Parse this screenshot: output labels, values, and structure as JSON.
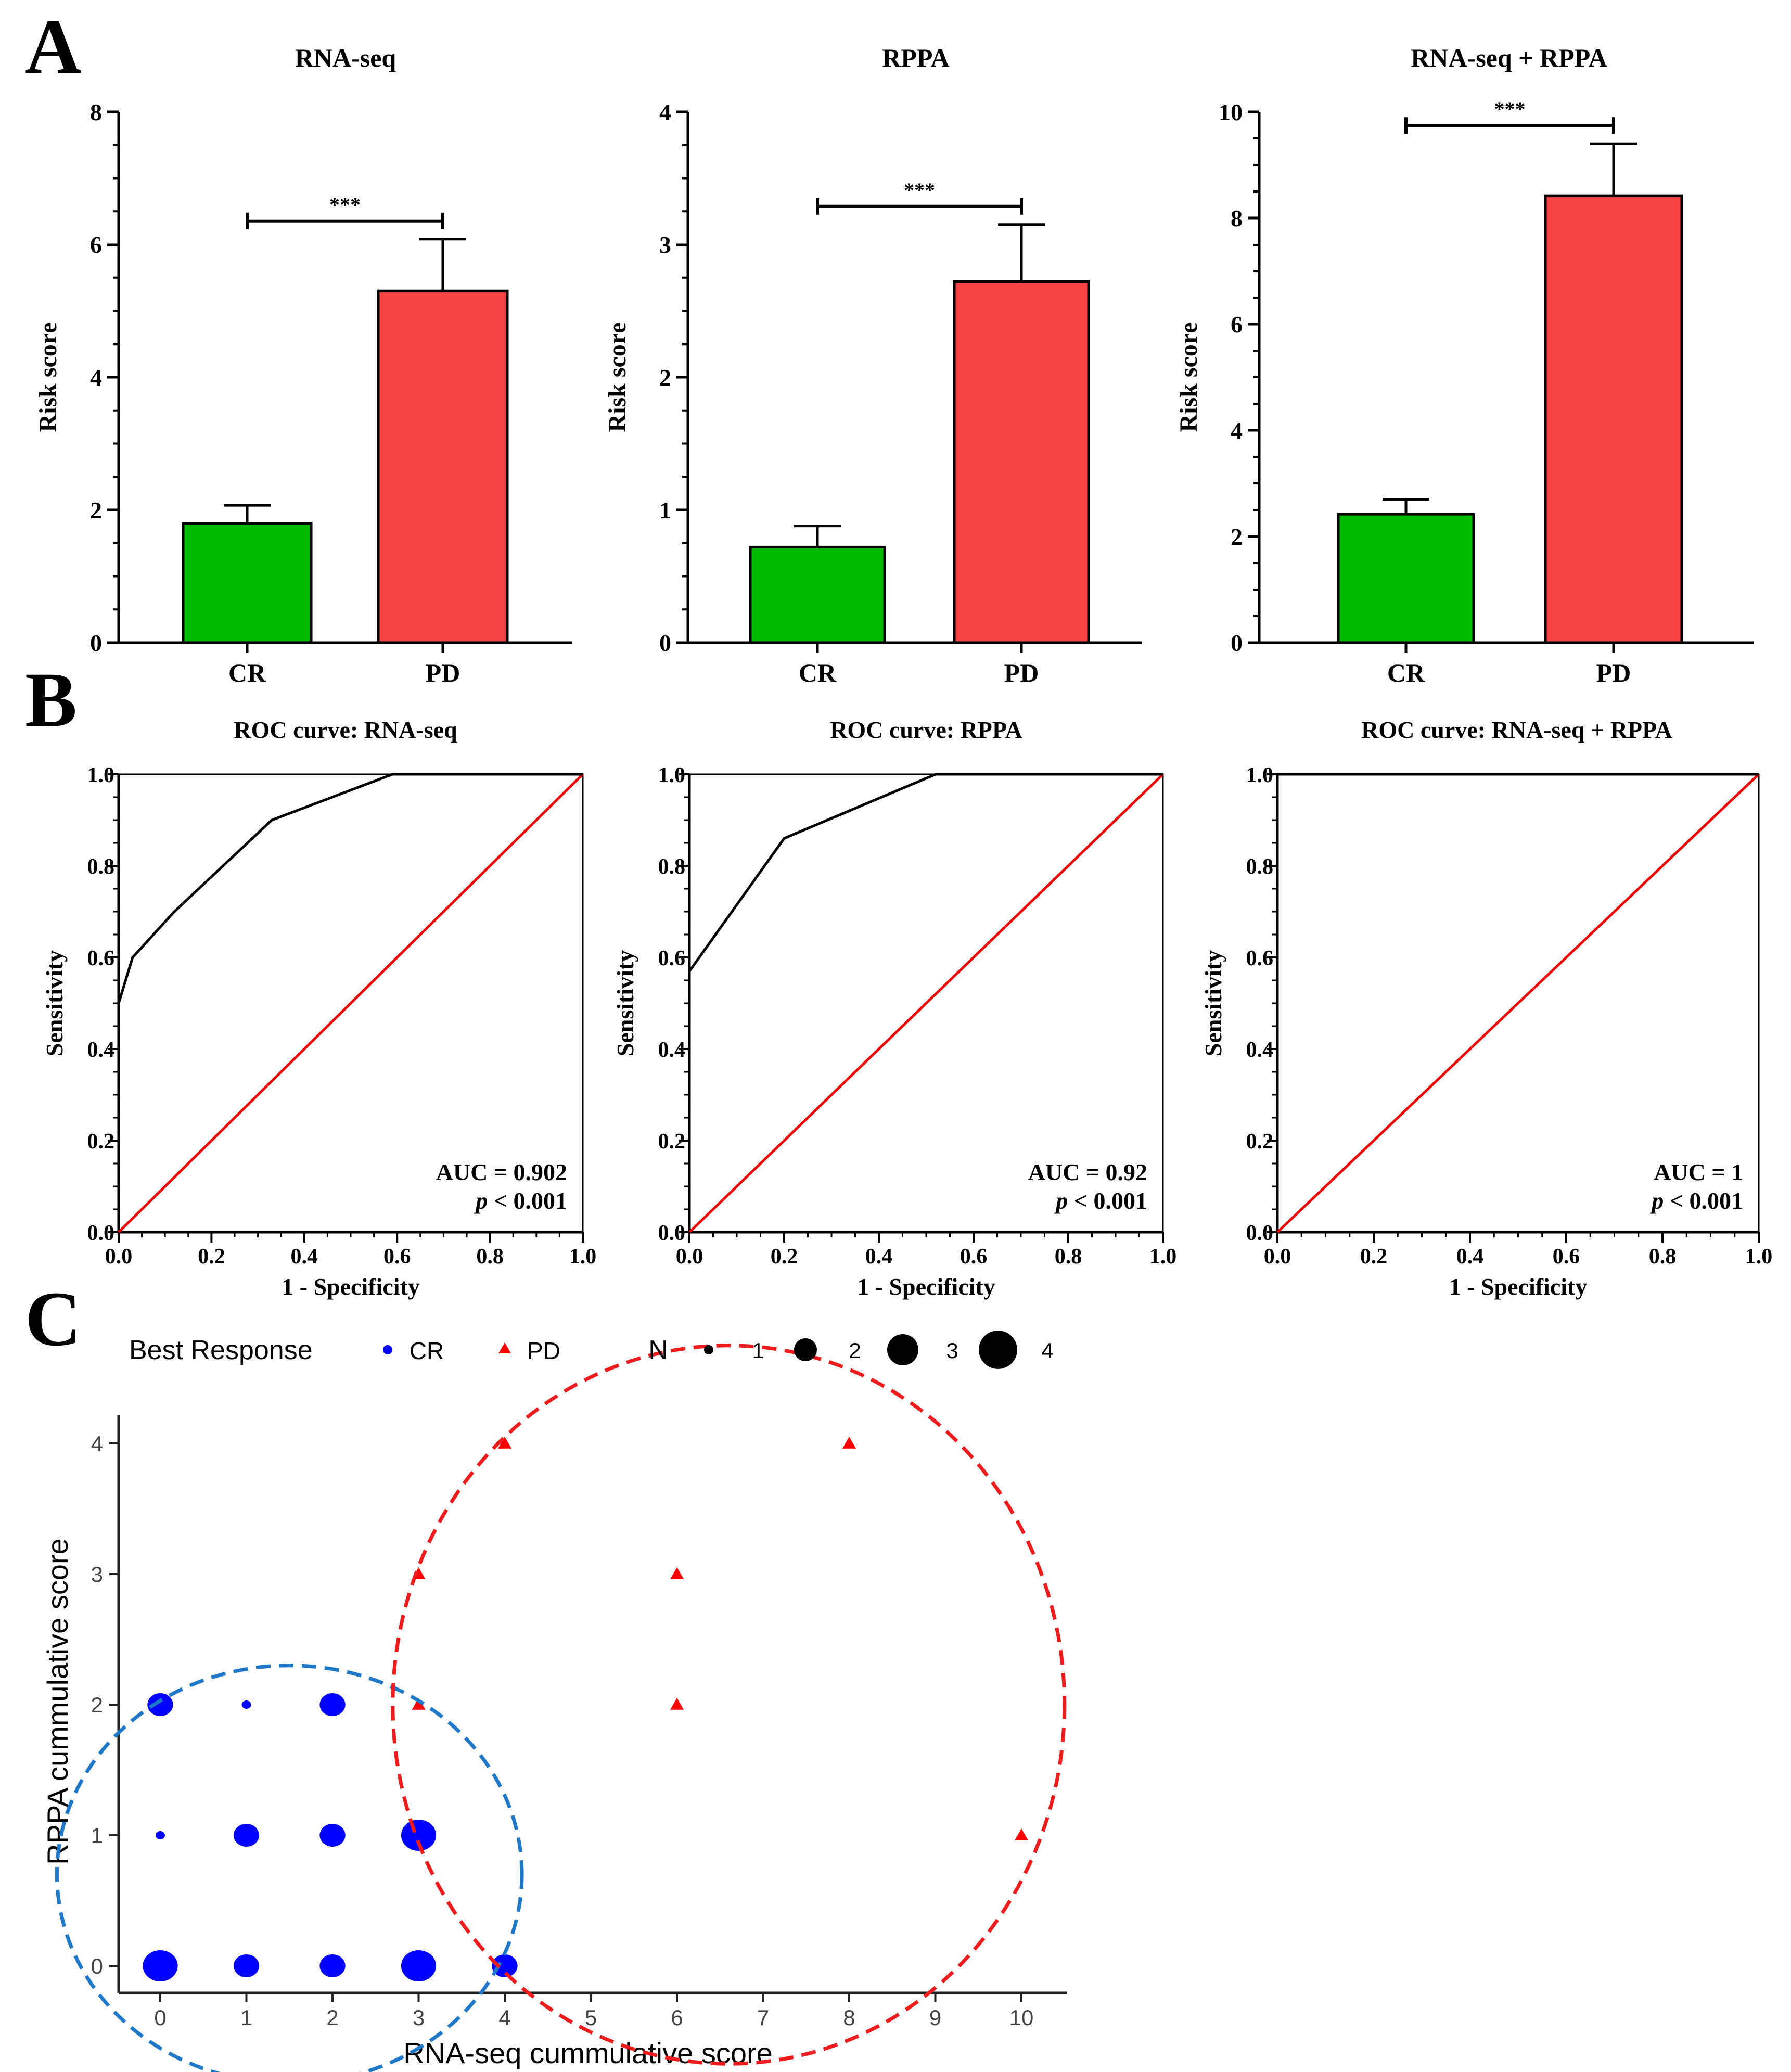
{
  "panel_labels": {
    "a": "A",
    "b": "B",
    "c": "C"
  },
  "chart_data": [
    {
      "type": "bar",
      "title": "RNA-seq",
      "ylabel": "Risk score",
      "categories": [
        "CR",
        "PD"
      ],
      "values": [
        1.8,
        5.3
      ],
      "errors": [
        0.27,
        0.78
      ],
      "ylim": [
        0,
        8
      ],
      "yticks": [
        "0",
        "2",
        "4",
        "6",
        "8"
      ],
      "colors": [
        "#00bb00",
        "#f64242"
      ],
      "significance": "***"
    },
    {
      "type": "bar",
      "title": "RPPA",
      "ylabel": "Risk score",
      "categories": [
        "CR",
        "PD"
      ],
      "values": [
        0.72,
        2.72
      ],
      "errors": [
        0.16,
        0.43
      ],
      "ylim": [
        0,
        4
      ],
      "yticks": [
        "0",
        "1",
        "2",
        "3",
        "4"
      ],
      "colors": [
        "#00bb00",
        "#f64242"
      ],
      "significance": "***"
    },
    {
      "type": "bar",
      "title": "RNA-seq + RPPA",
      "ylabel": "Risk score",
      "categories": [
        "CR",
        "PD"
      ],
      "values": [
        2.42,
        8.42
      ],
      "errors": [
        0.28,
        0.98
      ],
      "ylim": [
        0,
        10
      ],
      "yticks": [
        "0",
        "2",
        "4",
        "6",
        "8",
        "10"
      ],
      "colors": [
        "#00bb00",
        "#f64242"
      ],
      "significance": "***"
    },
    {
      "type": "line",
      "title": "ROC curve: RNA-seq",
      "xlabel": "1 - Specificity",
      "ylabel": "Sensitivity",
      "xlim": [
        0,
        1
      ],
      "ylim": [
        0,
        1
      ],
      "xticks": [
        "0.0",
        "0.2",
        "0.4",
        "0.6",
        "0.8",
        "1.0"
      ],
      "yticks": [
        "0.0",
        "0.2",
        "0.4",
        "0.6",
        "0.8",
        "1.0"
      ],
      "roc": [
        [
          0,
          0.5
        ],
        [
          0.03,
          0.6
        ],
        [
          0.12,
          0.7
        ],
        [
          0.33,
          0.9
        ],
        [
          0.59,
          1.0
        ],
        [
          1.0,
          1.0
        ]
      ],
      "auc_text": "AUC = 0.902",
      "p_label": "p",
      "p_text": " < 0.001"
    },
    {
      "type": "line",
      "title": "ROC curve: RPPA",
      "xlabel": "1 - Specificity",
      "ylabel": "Sensitivity",
      "xlim": [
        0,
        1
      ],
      "ylim": [
        0,
        1
      ],
      "xticks": [
        "0.0",
        "0.2",
        "0.4",
        "0.6",
        "0.8",
        "1.0"
      ],
      "yticks": [
        "0.0",
        "0.2",
        "0.4",
        "0.6",
        "0.8",
        "1.0"
      ],
      "roc": [
        [
          0,
          0.57
        ],
        [
          0.2,
          0.86
        ],
        [
          0.52,
          1.0
        ],
        [
          1.0,
          1.0
        ]
      ],
      "auc_text": "AUC = 0.92",
      "p_label": "p",
      "p_text": " < 0.001"
    },
    {
      "type": "line",
      "title": "ROC curve: RNA-seq + RPPA",
      "xlabel": "1 - Specificity",
      "ylabel": "Sensitivity",
      "xlim": [
        0,
        1
      ],
      "ylim": [
        0,
        1
      ],
      "xticks": [
        "0.0",
        "0.2",
        "0.4",
        "0.6",
        "0.8",
        "1.0"
      ],
      "yticks": [
        "0.0",
        "0.2",
        "0.4",
        "0.6",
        "0.8",
        "1.0"
      ],
      "roc": [
        [
          0,
          1.0
        ],
        [
          1.0,
          1.0
        ]
      ],
      "auc_text": "AUC = 1",
      "p_label": "p",
      "p_text": " < 0.001"
    },
    {
      "type": "scatter",
      "xlabel": "RNA-seq cummulative score",
      "ylabel": "RPPA cummulative score",
      "xticks": [
        0,
        1,
        2,
        3,
        4,
        5,
        6,
        7,
        8,
        9,
        10
      ],
      "yticks": [
        0,
        1,
        2,
        3,
        4
      ],
      "legend": {
        "group_title": "Best Response",
        "groups": [
          {
            "label": "CR",
            "shape": "circle",
            "color": "#0000ff"
          },
          {
            "label": "PD",
            "shape": "triangle",
            "color": "#ff0000"
          }
        ],
        "size_title": "N",
        "sizes": [
          1,
          2,
          3,
          4
        ]
      },
      "points": [
        {
          "x": 0,
          "y": 0,
          "n": 3,
          "group": "CR"
        },
        {
          "x": 1,
          "y": 0,
          "n": 2,
          "group": "CR"
        },
        {
          "x": 2,
          "y": 0,
          "n": 2,
          "group": "CR"
        },
        {
          "x": 3,
          "y": 0,
          "n": 3,
          "group": "CR"
        },
        {
          "x": 4,
          "y": 0,
          "n": 2,
          "group": "CR"
        },
        {
          "x": 0,
          "y": 1,
          "n": 1,
          "group": "CR"
        },
        {
          "x": 1,
          "y": 1,
          "n": 2,
          "group": "CR"
        },
        {
          "x": 2,
          "y": 1,
          "n": 2,
          "group": "CR"
        },
        {
          "x": 3,
          "y": 1,
          "n": 3,
          "group": "CR"
        },
        {
          "x": 0,
          "y": 2,
          "n": 2,
          "group": "CR"
        },
        {
          "x": 1,
          "y": 2,
          "n": 1,
          "group": "CR"
        },
        {
          "x": 2,
          "y": 2,
          "n": 2,
          "group": "CR"
        },
        {
          "x": 3,
          "y": 2,
          "n": 1,
          "group": "PD"
        },
        {
          "x": 3,
          "y": 3,
          "n": 1,
          "group": "PD"
        },
        {
          "x": 4,
          "y": 4,
          "n": 1,
          "group": "PD"
        },
        {
          "x": 6,
          "y": 2,
          "n": 1,
          "group": "PD"
        },
        {
          "x": 6,
          "y": 3,
          "n": 1,
          "group": "PD"
        },
        {
          "x": 8,
          "y": 4,
          "n": 1,
          "group": "PD"
        },
        {
          "x": 10,
          "y": 1,
          "n": 1,
          "group": "PD"
        }
      ],
      "ellipses": [
        {
          "group": "CR",
          "color": "#1f78c8",
          "cx": 1.5,
          "cy": 0.7,
          "rx": 2.7,
          "ry": 1.6
        },
        {
          "group": "PD",
          "color": "#ee1c1c",
          "cx": 6.6,
          "cy": 2.0,
          "rx": 3.9,
          "ry": 2.75
        }
      ]
    }
  ]
}
